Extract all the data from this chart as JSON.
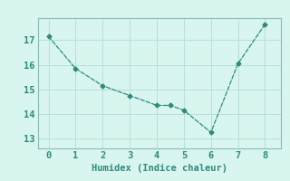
{
  "x": [
    0,
    1,
    2,
    3,
    4,
    4.5,
    5,
    6,
    7,
    8
  ],
  "y": [
    17.15,
    15.85,
    15.15,
    14.75,
    14.35,
    14.35,
    14.15,
    13.25,
    16.05,
    17.65
  ],
  "line_color": "#2e8b7a",
  "marker": "D",
  "marker_size": 2.5,
  "bg_color": "#d8f5f0",
  "grid_color": "#b8e0d8",
  "xlabel": "Humidex (Indice chaleur)",
  "xlabel_fontsize": 7.5,
  "tick_fontsize": 7.5,
  "xlim": [
    -0.4,
    8.6
  ],
  "ylim": [
    12.6,
    17.9
  ],
  "yticks": [
    13,
    14,
    15,
    16,
    17
  ],
  "xticks": [
    0,
    1,
    2,
    3,
    4,
    5,
    6,
    7,
    8
  ],
  "spine_color": "#8abdb5"
}
